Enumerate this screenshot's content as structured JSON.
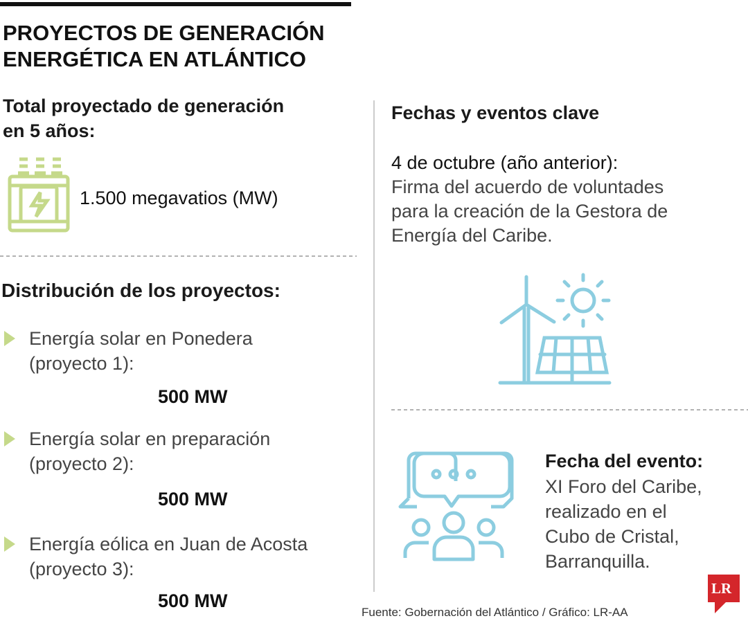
{
  "header": {
    "title": [
      "PROYECTOS DE GENERACIÓN",
      "ENERGÉTICA EN ATLÁNTICO"
    ]
  },
  "total": {
    "heading": [
      "Total proyectado de generación",
      "en 5 años:"
    ],
    "value": "1.500 megavatios (MW)"
  },
  "distribution": {
    "heading": "Distribución de los proyectos:",
    "items": [
      {
        "label": [
          "Energía solar en Ponedera",
          "(proyecto 1):"
        ],
        "value": "500 MW"
      },
      {
        "label": [
          "Energía solar en preparación",
          "(proyecto 2):"
        ],
        "value": "500 MW"
      },
      {
        "label": [
          "Energía eólica en Juan de Acosta",
          "(proyecto 3):"
        ],
        "value": "500 MW"
      }
    ]
  },
  "events": {
    "heading": "Fechas y eventos clave",
    "first": {
      "date": "4 de octubre (año anterior):",
      "text": [
        "Firma del acuerdo de voluntades",
        "para la creación de la Gestora de",
        "Energía del Caribe."
      ]
    },
    "second": {
      "date": "Fecha del evento:",
      "text": [
        "XI Foro del Caribe,",
        "realizado en el",
        "Cubo de Cristal,",
        "Barranquilla."
      ]
    }
  },
  "source": "Fuente: Gobernación del Atlántico / Gráfico: LR-AA",
  "logo": "LR"
}
